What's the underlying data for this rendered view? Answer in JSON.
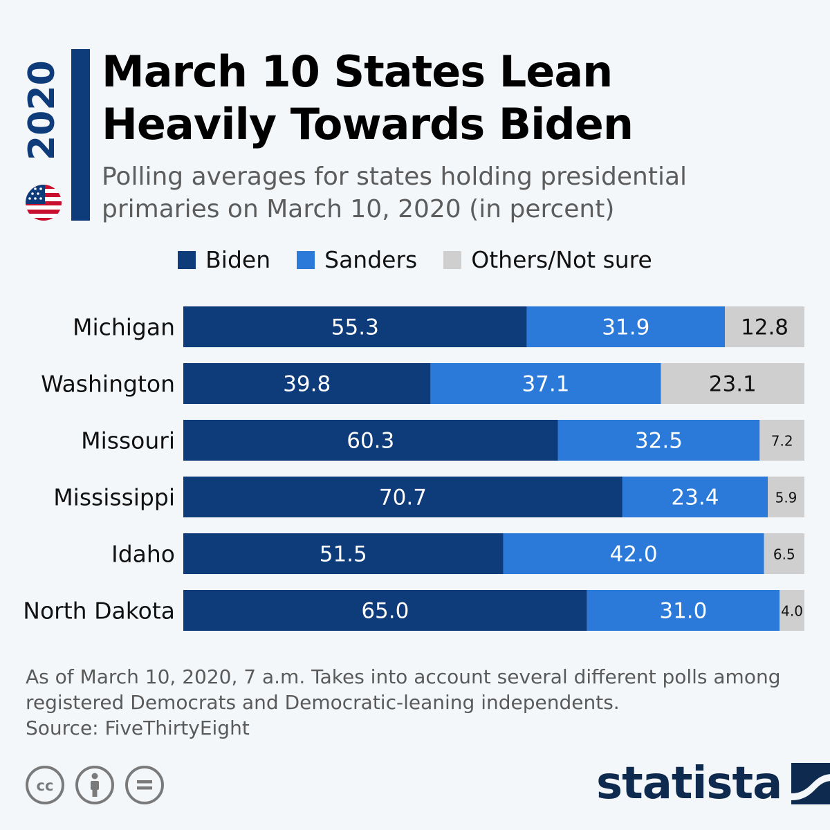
{
  "badge": {
    "year": "2020"
  },
  "header": {
    "title_line1": "March 10 States Lean",
    "title_line2": "Heavily Towards Biden",
    "subtitle_line1": "Polling averages for states holding presidential",
    "subtitle_line2": "primaries on March 10, 2020 (in percent)"
  },
  "legend": [
    {
      "label": "Biden",
      "color": "#0e3b7a"
    },
    {
      "label": "Sanders",
      "color": "#2b7ad9"
    },
    {
      "label": "Others/Not sure",
      "color": "#cfcfcf"
    }
  ],
  "chart_data": {
    "type": "bar",
    "orientation": "horizontal",
    "stacked": true,
    "title": "March 10 States Lean Heavily Towards Biden",
    "subtitle": "Polling averages for states holding presidential primaries on March 10, 2020 (in percent)",
    "categories": [
      "Michigan",
      "Washington",
      "Missouri",
      "Mississippi",
      "Idaho",
      "North Dakota"
    ],
    "series": [
      {
        "name": "Biden",
        "color": "#0e3b7a",
        "values": [
          55.3,
          39.8,
          60.3,
          70.7,
          51.5,
          65.0
        ]
      },
      {
        "name": "Sanders",
        "color": "#2b7ad9",
        "values": [
          31.9,
          37.1,
          32.5,
          23.4,
          42.0,
          31.0
        ]
      },
      {
        "name": "Others/Not sure",
        "color": "#cfcfcf",
        "values": [
          12.8,
          23.1,
          7.2,
          5.9,
          6.5,
          4.0
        ]
      }
    ],
    "value_labels": [
      [
        "55.3",
        "31.9",
        "12.8"
      ],
      [
        "39.8",
        "37.1",
        "23.1"
      ],
      [
        "60.3",
        "32.5",
        "7.2"
      ],
      [
        "70.7",
        "23.4",
        "5.9"
      ],
      [
        "51.5",
        "42.0",
        "6.5"
      ],
      [
        "65.0",
        "31.0",
        "4.0"
      ]
    ],
    "xlim": [
      0,
      100
    ],
    "grid": false,
    "legend_position": "top"
  },
  "footnote": {
    "line1": "As of March 10, 2020, 7 a.m. Takes into account several different polls among",
    "line2": "registered Democrats and Democratic-leaning independents.",
    "line3": "Source: FiveThirtyEight"
  },
  "brand": {
    "name": "statista"
  }
}
